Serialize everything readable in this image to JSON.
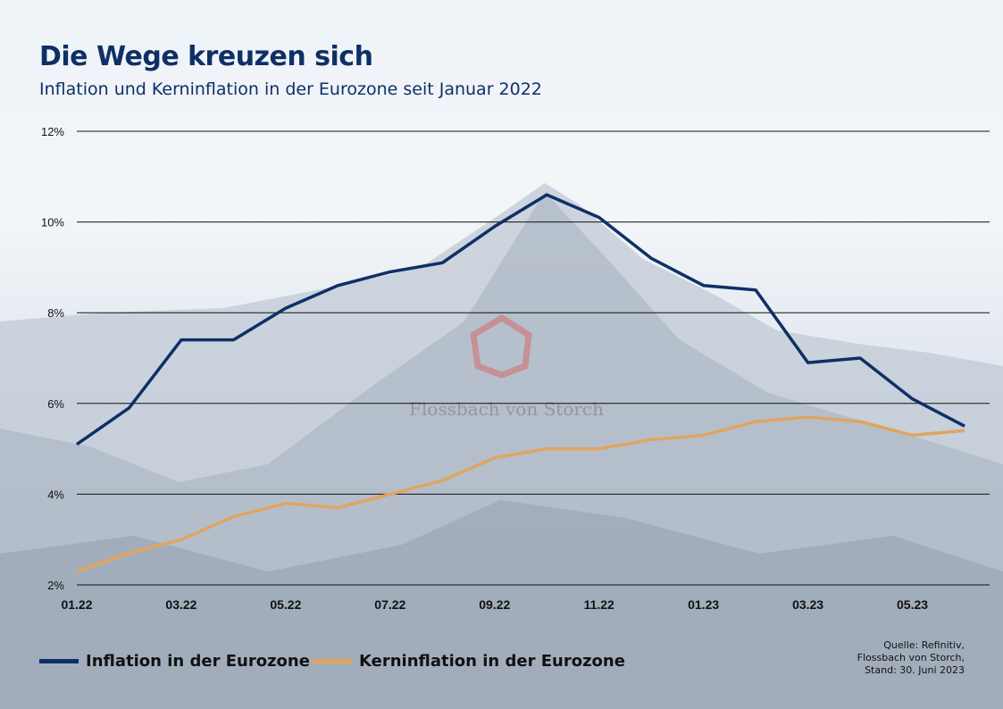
{
  "header": {
    "title": "Die Wege kreuzen sich",
    "subtitle": "Inflation und Kerninflation in der Eurozone seit Januar 2022"
  },
  "watermark": "Flossbach von Storch",
  "source": {
    "line1": "Quelle: Refinitiv,",
    "line2": "Flossbach von Storch,",
    "line3": "Stand: 30. Juni 2023"
  },
  "chart_data": {
    "type": "line",
    "title": "Die Wege kreuzen sich",
    "subtitle": "Inflation und Kerninflation in der Eurozone seit Januar 2022",
    "x": [
      "01.22",
      "02.22",
      "03.22",
      "04.22",
      "05.22",
      "06.22",
      "07.22",
      "08.22",
      "09.22",
      "10.22",
      "11.22",
      "12.22",
      "01.23",
      "02.23",
      "03.23",
      "04.23",
      "05.23",
      "06.23"
    ],
    "x_tick_labels": [
      "01.22",
      "03.22",
      "05.22",
      "07.22",
      "09.22",
      "11.22",
      "01.23",
      "03.23",
      "05.23"
    ],
    "y_tick_labels": [
      "2%",
      "4%",
      "6%",
      "8%",
      "10%",
      "12%"
    ],
    "ylim": [
      2,
      12
    ],
    "grid": true,
    "legend_position": "bottom-left",
    "series": [
      {
        "name": "Inflation in der Eurozone",
        "color": "#0f2f66",
        "values": [
          5.1,
          5.9,
          7.4,
          7.4,
          8.1,
          8.6,
          8.9,
          9.1,
          9.9,
          10.6,
          10.1,
          9.2,
          8.6,
          8.5,
          6.9,
          7.0,
          6.1,
          5.5
        ]
      },
      {
        "name": "Kerninflation in der Eurozone",
        "color": "#e0a55e",
        "values": [
          2.3,
          2.7,
          3.0,
          3.5,
          3.8,
          3.7,
          4.0,
          4.3,
          4.8,
          5.0,
          5.0,
          5.2,
          5.3,
          5.6,
          5.7,
          5.6,
          5.3,
          5.4
        ]
      }
    ]
  }
}
